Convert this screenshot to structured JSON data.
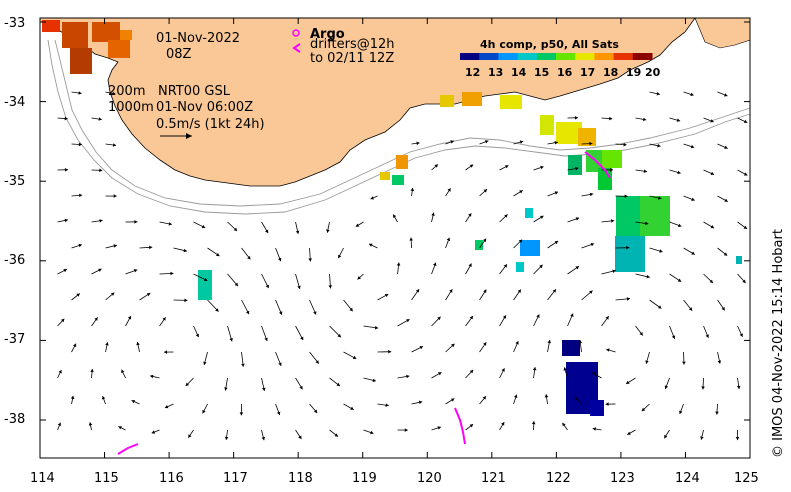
{
  "map": {
    "date": "01-Nov-2022",
    "time": "08Z",
    "legend_200m": "200m",
    "legend_1000m": "1000m",
    "product": "NRT00 GSL",
    "product_time": "01-Nov 06:00Z",
    "scale_label": "0.5m/s (1kt 24h)",
    "argo_title": "Argo",
    "argo_drifters": "drifters@12h",
    "argo_to": "to 02/11 12Z",
    "credit": "© IMOS 04-Nov-2022 15:14 Hobart",
    "colorbar_title": "4h comp, p50, All Sats",
    "colorbar_ticks": [
      "12",
      "13",
      "14",
      "15",
      "16",
      "17",
      "18",
      "19",
      "20"
    ],
    "colorbar_colors": [
      "#000080",
      "#0046c8",
      "#0096ff",
      "#00c8c8",
      "#00c864",
      "#64e600",
      "#e6e600",
      "#ff9600",
      "#e63200",
      "#8c0000"
    ],
    "lat_ticks": [
      "-33",
      "-34",
      "-35",
      "-36",
      "-37",
      "-38"
    ],
    "lon_ticks": [
      "114",
      "115",
      "116",
      "117",
      "118",
      "119",
      "120",
      "121",
      "122",
      "123",
      "124",
      "125"
    ],
    "land_color": "#fac896",
    "argo_color": "#ff00ff"
  }
}
